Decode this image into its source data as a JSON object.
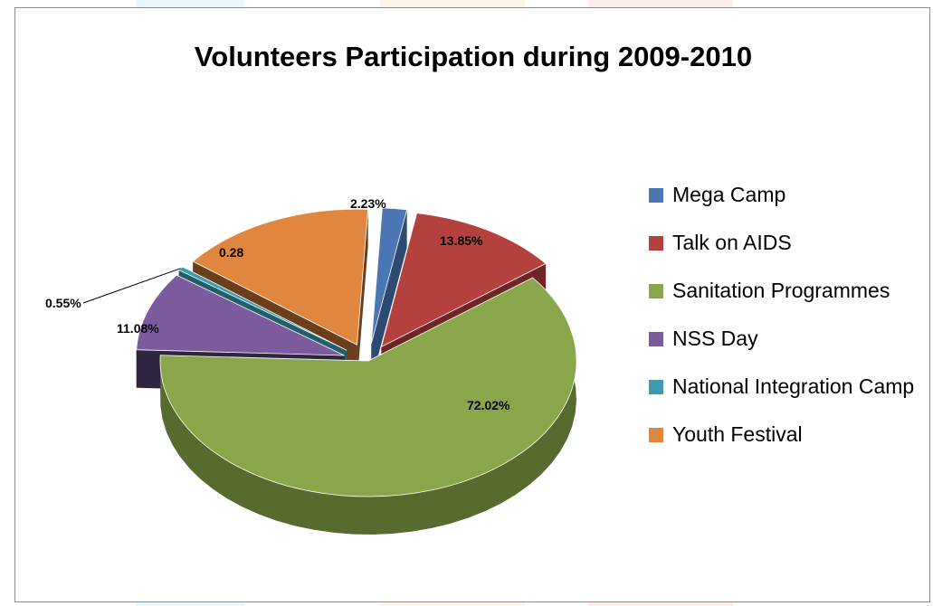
{
  "chart_data": {
    "type": "pie",
    "style": "3d-exploded",
    "title": "Volunteers Participation during 2009-2010",
    "legend_position": "right",
    "categories": [
      "Mega Camp",
      "Talk on AIDS",
      "Sanitation Programmes",
      "NSS Day",
      "National Integration Camp",
      "Youth Festival"
    ],
    "values": [
      2.23,
      13.85,
      72.02,
      11.08,
      0.55,
      0.28
    ],
    "data_labels": [
      "2.23%",
      "13.85%",
      "72.02%",
      "11.08%",
      "0.55%",
      "0.28"
    ],
    "colors": [
      "#4a77b4",
      "#b5413f",
      "#8aa64b",
      "#7b5b9c",
      "#3d9bb0",
      "#e0863e"
    ],
    "side_colors": [
      "#2c4a72",
      "#6e2624",
      "#566b2d",
      "#2f2540",
      "#235e6b",
      "#6b3f1c"
    ]
  }
}
